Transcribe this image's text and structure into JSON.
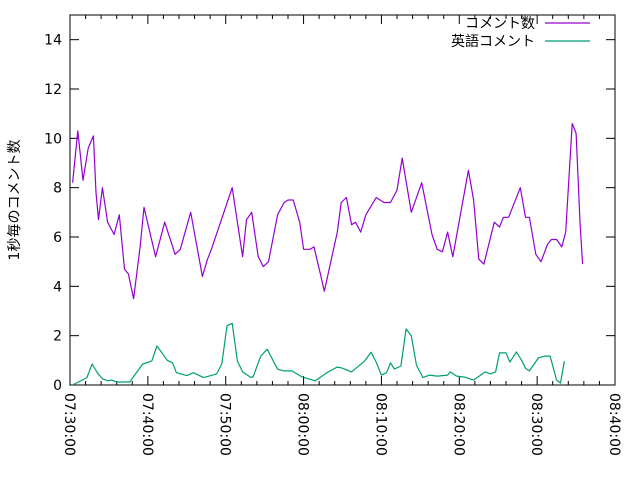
{
  "chart_data": {
    "type": "line",
    "title": "",
    "xlabel": "",
    "ylabel": "1秒毎のコメント数",
    "xlim": [
      "07:30:00",
      "08:40:00"
    ],
    "ylim": [
      0,
      15
    ],
    "x_ticks": [
      "07:30:00",
      "07:40:00",
      "07:50:00",
      "08:00:00",
      "08:10:00",
      "08:20:00",
      "08:30:00",
      "08:40:00"
    ],
    "y_ticks": [
      "0",
      "2",
      "4",
      "6",
      "8",
      "10",
      "12",
      "14"
    ],
    "y_tick_values": [
      0,
      2,
      4,
      6,
      8,
      10,
      12,
      14
    ],
    "grid": false,
    "legend_position": "top-right",
    "series": [
      {
        "name": "コメント数",
        "color": "#9400d3",
        "x": [
          "07:30:20",
          "07:31:00",
          "07:31:40",
          "07:32:20",
          "07:33:00",
          "07:33:20",
          "07:33:40",
          "07:34:10",
          "07:34:50",
          "07:35:40",
          "07:36:20",
          "07:37:00",
          "07:37:30",
          "07:38:10",
          "07:39:00",
          "07:39:30",
          "07:41:00",
          "07:42:10",
          "07:43:30",
          "07:44:10",
          "07:45:30",
          "07:47:00",
          "07:47:40",
          "07:48:10",
          "07:50:50",
          "07:52:10",
          "07:52:40",
          "07:53:20",
          "07:54:10",
          "07:54:50",
          "07:55:30",
          "07:56:40",
          "07:57:30",
          "07:58:00",
          "07:58:40",
          "07:59:30",
          "08:00:00",
          "08:00:50",
          "08:01:20",
          "08:02:10",
          "08:02:40",
          "08:04:20",
          "08:04:50",
          "08:05:30",
          "08:06:10",
          "08:06:40",
          "08:07:20",
          "08:08:00",
          "08:09:20",
          "08:10:20",
          "08:11:10",
          "08:12:00",
          "08:12:40",
          "08:13:50",
          "08:15:10",
          "08:16:30",
          "08:17:10",
          "08:17:50",
          "08:18:30",
          "08:19:10",
          "08:21:10",
          "08:21:50",
          "08:22:30",
          "08:23:10",
          "08:24:30",
          "08:25:10",
          "08:25:40",
          "08:26:20",
          "08:27:50",
          "08:28:30",
          "08:29:00",
          "08:29:50",
          "08:30:30",
          "08:31:20",
          "08:31:50",
          "08:32:30",
          "08:33:10",
          "08:33:40",
          "08:34:30",
          "08:35:00",
          "08:35:30",
          "08:35:50"
        ],
        "y": [
          8.2,
          10.3,
          8.3,
          9.6,
          10.1,
          7.8,
          6.7,
          8.0,
          6.6,
          6.1,
          6.9,
          4.7,
          4.5,
          3.5,
          5.6,
          7.2,
          5.2,
          6.6,
          5.3,
          5.5,
          7.0,
          4.4,
          5.1,
          5.5,
          8.0,
          5.2,
          6.7,
          7.0,
          5.2,
          4.8,
          5.0,
          6.9,
          7.4,
          7.5,
          7.5,
          6.6,
          5.5,
          5.5,
          5.6,
          4.5,
          3.8,
          6.2,
          7.4,
          7.6,
          6.5,
          6.6,
          6.2,
          6.9,
          7.6,
          7.4,
          7.4,
          7.9,
          9.2,
          7.0,
          8.2,
          6.1,
          5.5,
          5.4,
          6.2,
          5.2,
          8.7,
          7.5,
          5.1,
          4.9,
          6.6,
          6.4,
          6.8,
          6.8,
          8.0,
          6.8,
          6.8,
          5.3,
          5.0,
          5.7,
          5.9,
          5.9,
          5.6,
          6.2,
          10.6,
          10.2,
          6.6,
          4.9
        ]
      },
      {
        "name": "英語コメント",
        "color": "#009e73",
        "x": [
          "07:30:20",
          "07:32:10",
          "07:32:50",
          "07:33:30",
          "07:34:10",
          "07:34:50",
          "07:35:20",
          "07:36:00",
          "07:37:40",
          "07:39:20",
          "07:40:30",
          "07:41:10",
          "07:42:30",
          "07:43:10",
          "07:43:40",
          "07:45:00",
          "07:45:50",
          "07:47:10",
          "07:48:50",
          "07:49:30",
          "07:50:10",
          "07:50:50",
          "07:51:30",
          "07:52:10",
          "07:53:10",
          "07:53:30",
          "07:54:30",
          "07:55:20",
          "07:56:40",
          "07:57:30",
          "07:58:30",
          "07:59:50",
          "08:01:30",
          "08:03:00",
          "08:04:20",
          "08:05:00",
          "08:06:10",
          "08:07:50",
          "08:08:40",
          "08:09:20",
          "08:10:00",
          "08:10:40",
          "08:11:10",
          "08:11:40",
          "08:12:30",
          "08:13:10",
          "08:13:50",
          "08:14:30",
          "08:15:20",
          "08:16:10",
          "08:17:10",
          "08:18:30",
          "08:18:50",
          "08:19:40",
          "08:20:40",
          "08:21:50",
          "08:23:20",
          "08:24:00",
          "08:24:40",
          "08:25:10",
          "08:26:00",
          "08:26:30",
          "08:27:20",
          "08:28:00",
          "08:28:30",
          "08:29:00",
          "08:30:10",
          "08:31:00",
          "08:31:40",
          "08:32:30",
          "08:33:00",
          "08:33:30"
        ],
        "y": [
          0,
          0.3,
          0.85,
          0.5,
          0.25,
          0.17,
          0.2,
          0.12,
          0.12,
          0.85,
          0.97,
          1.58,
          1.0,
          0.9,
          0.5,
          0.38,
          0.5,
          0.3,
          0.45,
          0.85,
          2.4,
          2.5,
          0.97,
          0.53,
          0.32,
          0.32,
          1.17,
          1.45,
          0.64,
          0.57,
          0.57,
          0.32,
          0.17,
          0.5,
          0.73,
          0.68,
          0.53,
          0.97,
          1.33,
          0.93,
          0.4,
          0.5,
          0.9,
          0.65,
          0.77,
          2.27,
          2.0,
          0.8,
          0.3,
          0.4,
          0.36,
          0.4,
          0.53,
          0.36,
          0.32,
          0.2,
          0.53,
          0.45,
          0.53,
          1.3,
          1.3,
          0.93,
          1.34,
          1.0,
          0.68,
          0.57,
          1.1,
          1.17,
          1.17,
          0.2,
          0.08,
          0.97
        ]
      }
    ]
  }
}
